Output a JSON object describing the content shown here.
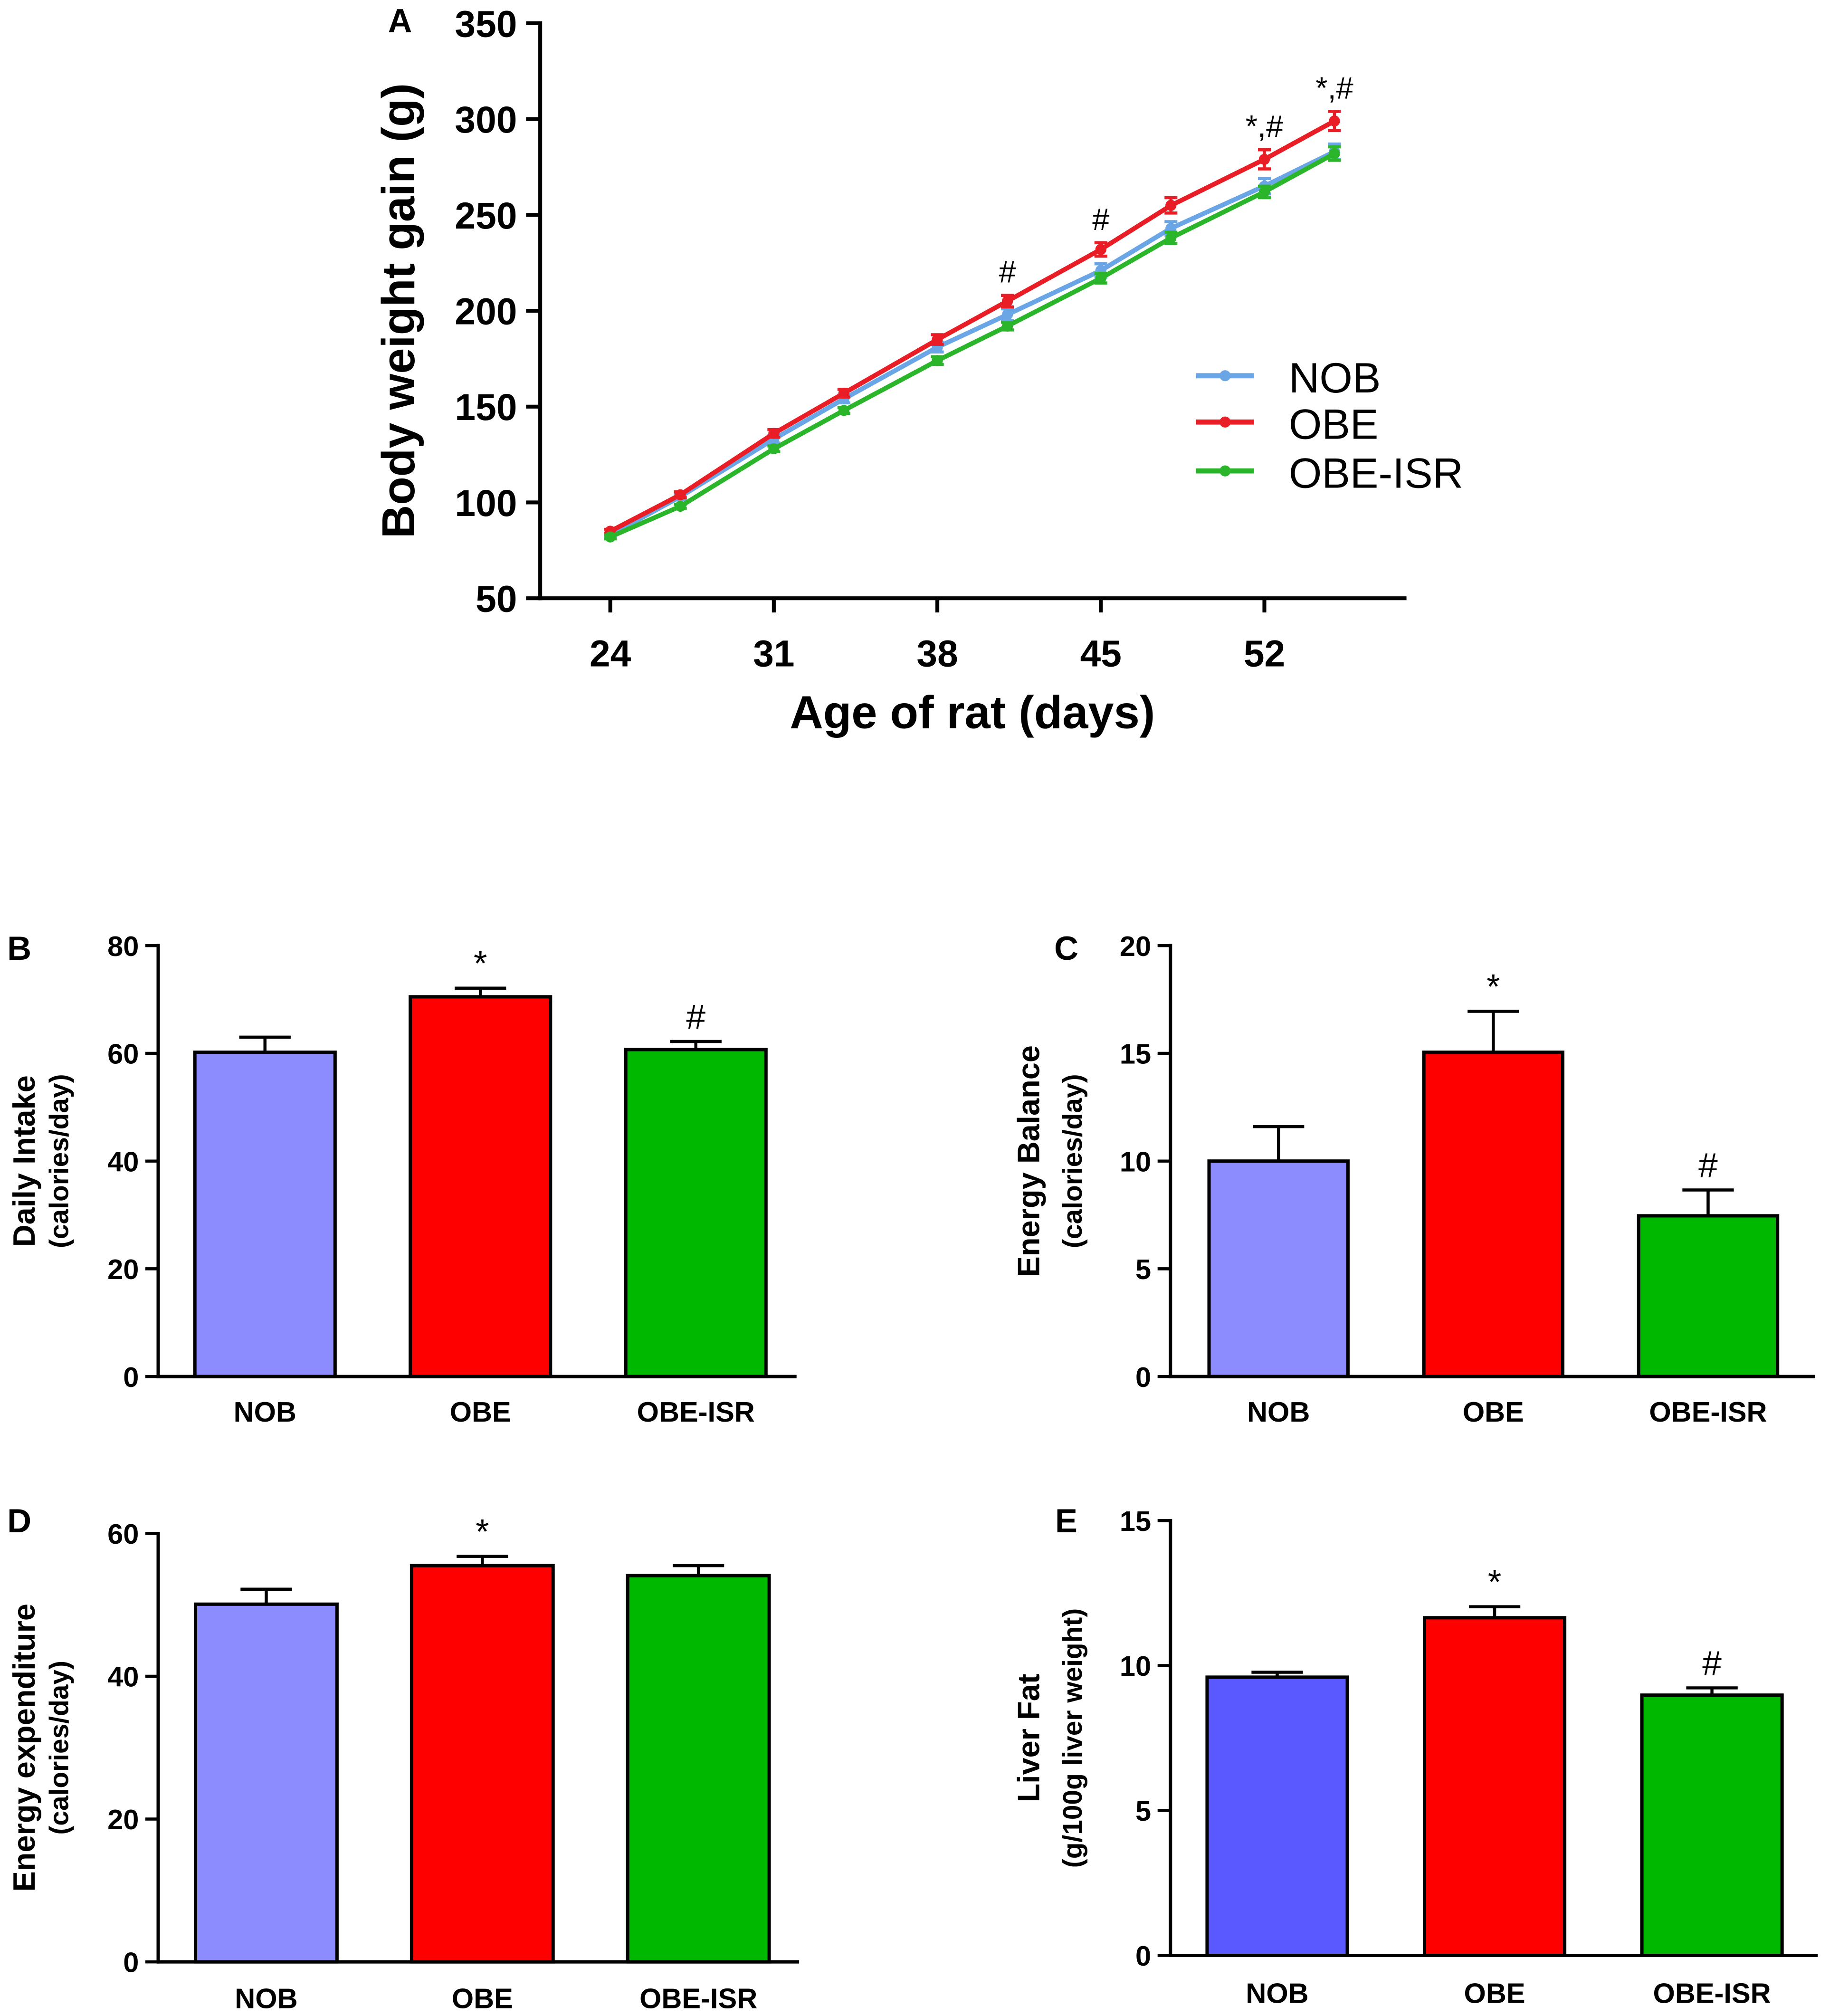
{
  "chart_data": [
    {
      "panel": "A",
      "type": "line",
      "xlabel": "Age of rat (days)",
      "ylabel": "Body weight gain (g)",
      "xlim": [
        21,
        58
      ],
      "ylim": [
        50,
        350
      ],
      "xticks": [
        24,
        31,
        38,
        45,
        52
      ],
      "yticks": [
        50,
        100,
        150,
        200,
        250,
        300,
        350
      ],
      "x": [
        24,
        27,
        31,
        34,
        38,
        41,
        45,
        48,
        52,
        55
      ],
      "series": [
        {
          "name": "NOB",
          "color": "#6aa5e6",
          "values": [
            83,
            103,
            133,
            154,
            181,
            198,
            221,
            243,
            265,
            283
          ],
          "errors": [
            1,
            1.5,
            2,
            2,
            2.5,
            3,
            3.5,
            3.5,
            4,
            4
          ]
        },
        {
          "name": "OBE",
          "color": "#e81d25",
          "values": [
            85,
            104,
            136,
            157,
            185,
            205,
            232,
            255,
            279,
            299
          ],
          "errors": [
            1,
            1.5,
            2,
            2,
            2.5,
            3,
            3.5,
            4,
            5,
            5
          ]
        },
        {
          "name": "OBE-ISR",
          "color": "#2bb52b",
          "values": [
            82,
            98,
            128,
            148,
            174,
            192,
            217,
            238,
            262,
            282
          ],
          "errors": [
            1,
            1,
            1.5,
            1.5,
            2,
            2,
            2.5,
            3,
            3,
            3.5
          ]
        }
      ],
      "annotations": [
        {
          "x": 41,
          "text": "#"
        },
        {
          "x": 45,
          "text": "#"
        },
        {
          "x": 52,
          "text": "*,#"
        },
        {
          "x": 55,
          "text": "*,#"
        }
      ],
      "legend": "center-right"
    },
    {
      "panel": "B",
      "type": "bar",
      "ylabel": "Daily Intake",
      "ylabel_unit": "(calories/day)",
      "ylim": [
        0,
        80
      ],
      "yticks": [
        0,
        20,
        40,
        60,
        80
      ],
      "categories": [
        "NOB",
        "OBE",
        "OBE-ISR"
      ],
      "values": [
        60.2,
        70.5,
        60.7
      ],
      "errors": [
        2.8,
        1.6,
        1.5
      ],
      "colors": [
        "#8c8cff",
        "#ff0000",
        "#00b800"
      ],
      "annotations": [
        null,
        "*",
        "#"
      ]
    },
    {
      "panel": "C",
      "type": "bar",
      "ylabel": "Energy Balance",
      "ylabel_unit": "(calories/day)",
      "ylim": [
        0,
        20
      ],
      "yticks": [
        0,
        5,
        10,
        15,
        20
      ],
      "categories": [
        "NOB",
        "OBE",
        "OBE-ISR"
      ],
      "values": [
        10.0,
        15.05,
        7.46
      ],
      "errors": [
        1.6,
        1.9,
        1.2
      ],
      "colors": [
        "#8c8cff",
        "#ff0000",
        "#00b800"
      ],
      "annotations": [
        null,
        "*",
        "#"
      ]
    },
    {
      "panel": "D",
      "type": "bar",
      "ylabel": "Energy expenditure",
      "ylabel_unit": "(calories/day)",
      "ylim": [
        0,
        60
      ],
      "yticks": [
        0,
        20,
        40,
        60
      ],
      "categories": [
        "NOB",
        "OBE",
        "OBE-ISR"
      ],
      "values": [
        50.1,
        55.5,
        54.1
      ],
      "errors": [
        2.1,
        1.3,
        1.4
      ],
      "colors": [
        "#8c8cff",
        "#ff0000",
        "#00b800"
      ],
      "annotations": [
        null,
        "*",
        null
      ]
    },
    {
      "panel": "E",
      "type": "bar",
      "ylabel": "Liver Fat",
      "ylabel_unit": "(g/100g liver weight)",
      "ylim": [
        0,
        15
      ],
      "yticks": [
        0,
        5,
        10,
        15
      ],
      "categories": [
        "NOB",
        "OBE",
        "OBE-ISR"
      ],
      "values": [
        9.6,
        11.65,
        8.98
      ],
      "errors": [
        0.17,
        0.38,
        0.25
      ],
      "colors": [
        "#5959ff",
        "#ff0000",
        "#00b800"
      ],
      "annotations": [
        null,
        "*",
        "#"
      ]
    }
  ]
}
